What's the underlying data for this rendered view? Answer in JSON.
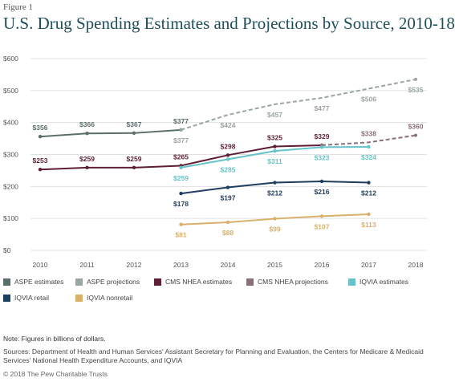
{
  "figure_label": "Figure 1",
  "title": "U.S. Drug Spending Estimates and Projections by Source, 2010-18",
  "chart_data": {
    "type": "line",
    "x": [
      2010,
      2011,
      2012,
      2013,
      2014,
      2015,
      2016,
      2017,
      2018
    ],
    "x_tick_labels": [
      "2010",
      "2011",
      "2012",
      "2013",
      "2014",
      "2015",
      "2016",
      "2017",
      "2018"
    ],
    "y_ticks": [
      0,
      100,
      200,
      300,
      400,
      500,
      600
    ],
    "y_tick_labels": [
      "$0",
      "$100",
      "$200",
      "$300",
      "$400",
      "$500",
      "$600"
    ],
    "ylim": [
      0,
      600
    ],
    "grid": "horizontal",
    "series": [
      {
        "name": "ASPE estimates",
        "color": "#5b6e6c",
        "dashed": false,
        "x": [
          2010,
          2011,
          2012,
          2013
        ],
        "values": [
          356,
          366,
          367,
          377
        ],
        "labels": [
          "$356",
          "$366",
          "$367",
          "$377"
        ],
        "label_pos": "above"
      },
      {
        "name": "ASPE projections",
        "color": "#9aa6a4",
        "dashed": true,
        "x": [
          2013,
          2014,
          2015,
          2016,
          2017,
          2018
        ],
        "values": [
          377,
          424,
          457,
          477,
          506,
          535
        ],
        "labels": [
          "$377",
          "$424",
          "$457",
          "$477",
          "$506",
          "$535"
        ],
        "label_pos": "below"
      },
      {
        "name": "CMS NHEA estimates",
        "color": "#5e1f36",
        "dashed": false,
        "x": [
          2010,
          2011,
          2012,
          2013,
          2014,
          2015,
          2016
        ],
        "values": [
          253,
          259,
          259,
          265,
          298,
          325,
          329
        ],
        "labels": [
          "$253",
          "$259",
          "$259",
          "$265",
          "$298",
          "$325",
          "$329"
        ],
        "label_pos": "above"
      },
      {
        "name": "CMS NHEA projections",
        "color": "#8a6e78",
        "dashed": true,
        "x": [
          2016,
          2017,
          2018
        ],
        "values": [
          329,
          338,
          360
        ],
        "labels": [
          "",
          "$338",
          "$360"
        ],
        "label_pos": "above"
      },
      {
        "name": "IQVIA estimates",
        "color": "#66c3c9",
        "dashed": false,
        "x": [
          2013,
          2014,
          2015,
          2016,
          2017
        ],
        "values": [
          259,
          285,
          311,
          323,
          324
        ],
        "labels": [
          "$259",
          "$285",
          "$311",
          "$323",
          "$324"
        ],
        "label_pos": "below"
      },
      {
        "name": "IQVIA retail",
        "color": "#1f3d5e",
        "dashed": false,
        "x": [
          2013,
          2014,
          2015,
          2016,
          2017
        ],
        "values": [
          178,
          197,
          212,
          216,
          212
        ],
        "labels": [
          "$178",
          "$197",
          "$212",
          "$216",
          "$212"
        ],
        "label_pos": "below"
      },
      {
        "name": "IQVIA nonretail",
        "color": "#d8b06a",
        "dashed": false,
        "x": [
          2013,
          2014,
          2015,
          2016,
          2017
        ],
        "values": [
          81,
          88,
          99,
          107,
          113
        ],
        "labels": [
          "$81",
          "$88",
          "$99",
          "$107",
          "$113"
        ],
        "label_pos": "below"
      }
    ]
  },
  "legend": [
    {
      "label": "ASPE estimates",
      "color": "#5b6e6c"
    },
    {
      "label": "ASPE projections",
      "color": "#9aa6a4"
    },
    {
      "label": "CMS NHEA estimates",
      "color": "#5e1f36"
    },
    {
      "label": "CMS NHEA projections",
      "color": "#8a6e78"
    },
    {
      "label": "IQVIA estimates",
      "color": "#66c3c9"
    },
    {
      "label": "IQVIA retail",
      "color": "#1f3d5e"
    },
    {
      "label": "IQVIA nonretail",
      "color": "#d8b06a"
    }
  ],
  "note": "Note: Figures in billions of dollars.",
  "sources": "Sources: Department of Health and Human Services' Assistant Secretary for Planning and Evaluation, the Centers for Medicare & Medicaid Services' National Health Expenditure Accounts, and IQVIA",
  "copyright": "© 2018 The Pew Charitable Trusts"
}
